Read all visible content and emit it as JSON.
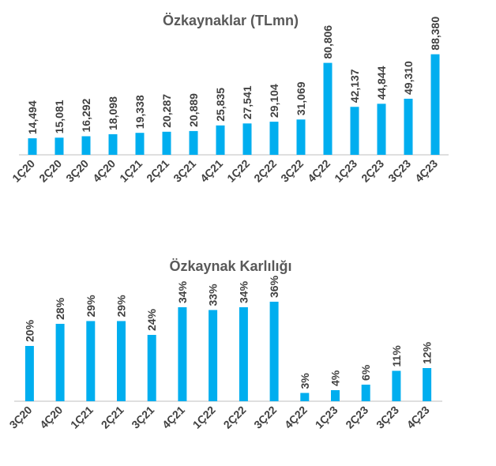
{
  "colors": {
    "bar": "#00aeef",
    "text": "#404040",
    "title": "#595959",
    "axis": "#bfbfbf"
  },
  "chart_data": [
    {
      "type": "bar",
      "title": "Özkaynaklar (TLmn)",
      "xlabel": "",
      "ylabel": "",
      "ylim": [
        0,
        100000
      ],
      "grid": false,
      "categories": [
        "1Ç20",
        "2Ç20",
        "3Ç20",
        "4Ç20",
        "1Ç21",
        "2Ç21",
        "3Ç21",
        "4Ç21",
        "1Ç22",
        "2Ç22",
        "3Ç22",
        "4Ç22",
        "1Ç23",
        "2Ç23",
        "3Ç23",
        "4Ç23"
      ],
      "values": [
        14494,
        15081,
        16292,
        18098,
        19338,
        20287,
        20889,
        25835,
        27541,
        29104,
        31069,
        80806,
        42137,
        44844,
        49310,
        88380
      ],
      "labels": [
        "14,494",
        "15,081",
        "16,292",
        "18,098",
        "19,338",
        "20,287",
        "20,889",
        "25,835",
        "27,541",
        "29,104",
        "31,069",
        "80,806",
        "42,137",
        "44,844",
        "49,310",
        "88,380"
      ]
    },
    {
      "type": "bar",
      "title": "Özkaynak Karlılığı",
      "xlabel": "",
      "ylabel": "",
      "ylim": [
        0,
        40
      ],
      "grid": false,
      "categories": [
        "3Ç20",
        "4Ç20",
        "1Ç21",
        "2Ç21",
        "3Ç21",
        "4Ç21",
        "1Ç22",
        "2Ç22",
        "3Ç22",
        "4Ç22",
        "1Ç23",
        "2Ç23",
        "3Ç23",
        "4Ç23"
      ],
      "values": [
        20,
        28,
        29,
        29,
        24,
        34,
        33,
        34,
        36,
        3,
        4,
        6,
        11,
        12
      ],
      "labels": [
        "20%",
        "28%",
        "29%",
        "29%",
        "24%",
        "34%",
        "33%",
        "34%",
        "36%",
        "3%",
        "4%",
        "6%",
        "11%",
        "12%"
      ]
    }
  ]
}
